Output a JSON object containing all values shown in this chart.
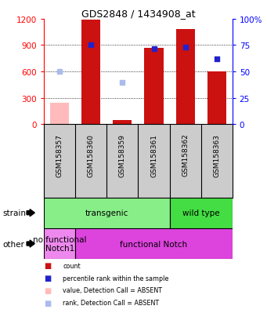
{
  "title": "GDS2848 / 1434908_at",
  "samples": [
    "GSM158357",
    "GSM158360",
    "GSM158359",
    "GSM158361",
    "GSM158362",
    "GSM158363"
  ],
  "count_values": [
    null,
    1190,
    50,
    870,
    1080,
    600
  ],
  "count_absent": [
    240,
    null,
    null,
    null,
    null,
    null
  ],
  "rank_values": [
    null,
    75,
    null,
    72,
    73,
    62
  ],
  "rank_absent": [
    50,
    null,
    40,
    null,
    null,
    null
  ],
  "ylim_left": [
    0,
    1200
  ],
  "ylim_right": [
    0,
    100
  ],
  "yticks_left": [
    0,
    300,
    600,
    900,
    1200
  ],
  "yticks_right": [
    0,
    25,
    50,
    75,
    100
  ],
  "yticklabels_right": [
    "0",
    "25",
    "50",
    "75",
    "100%"
  ],
  "bar_color_present": "#cc1111",
  "bar_color_absent": "#ffbbbb",
  "dot_color_present": "#2222cc",
  "dot_color_absent": "#aabbee",
  "bar_width": 0.6,
  "strain_labels": [
    {
      "text": "transgenic",
      "start": 0,
      "end": 3,
      "color": "#88ee88"
    },
    {
      "text": "wild type",
      "start": 4,
      "end": 5,
      "color": "#44dd44"
    }
  ],
  "other_labels": [
    {
      "text": "no functional\nNotch1",
      "start": 0,
      "end": 0,
      "color": "#ee88ee"
    },
    {
      "text": "functional Notch",
      "start": 1,
      "end": 5,
      "color": "#dd44dd"
    }
  ],
  "legend_items": [
    {
      "label": "count",
      "color": "#cc1111"
    },
    {
      "label": "percentile rank within the sample",
      "color": "#2222cc"
    },
    {
      "label": "value, Detection Call = ABSENT",
      "color": "#ffbbbb"
    },
    {
      "label": "rank, Detection Call = ABSENT",
      "color": "#aabbee"
    }
  ],
  "strain_row_label": "strain",
  "other_row_label": "other",
  "xlabel_bg_color": "#cccccc",
  "axis_bg_color": "#ffffff"
}
